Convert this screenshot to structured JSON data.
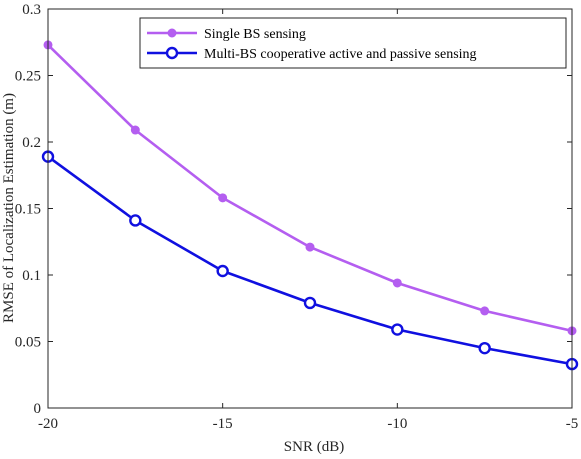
{
  "chart_data": {
    "type": "line",
    "title": "",
    "xlabel": "SNR (dB)",
    "ylabel": "RMSE of Localization Estimation (m)",
    "xlim": [
      -20,
      -5
    ],
    "ylim": [
      0,
      0.3
    ],
    "xticks": [
      -20,
      -15,
      -10,
      -5
    ],
    "xtick_labels": [
      "-20",
      "-15",
      "-10",
      "-5"
    ],
    "yticks": [
      0,
      0.05,
      0.1,
      0.15,
      0.2,
      0.25,
      0.3
    ],
    "ytick_labels": [
      "0",
      "0.05",
      "0.1",
      "0.15",
      "0.2",
      "0.25",
      "0.3"
    ],
    "grid": false,
    "legend_position": "top-right",
    "x": [
      -20,
      -17.5,
      -15,
      -12.5,
      -10,
      -7.5,
      -5
    ],
    "series": [
      {
        "name": "Single BS sensing",
        "values": [
          0.273,
          0.209,
          0.158,
          0.121,
          0.094,
          0.073,
          0.058
        ],
        "color": "#b45ef0",
        "marker": "filled-circle"
      },
      {
        "name": "Multi-BS cooperative active and passive sensing",
        "values": [
          0.189,
          0.141,
          0.103,
          0.079,
          0.059,
          0.045,
          0.033
        ],
        "color": "#1010e0",
        "marker": "open-circle"
      }
    ]
  }
}
